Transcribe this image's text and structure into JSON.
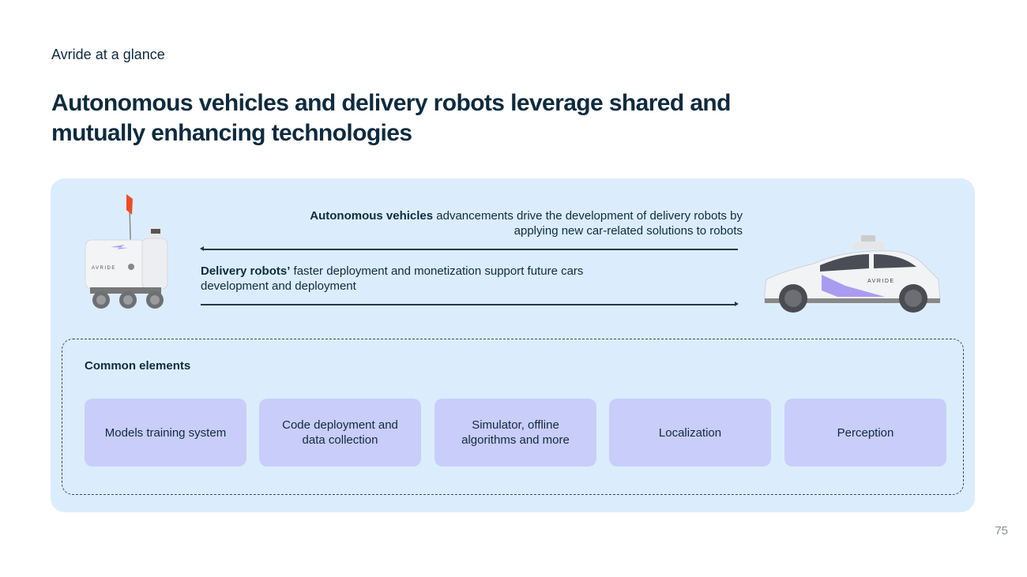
{
  "header": {
    "kicker": "Avride at a glance",
    "title": "Autonomous vehicles and delivery robots leverage shared and mutually enhancing technologies"
  },
  "relationship": {
    "av_bold": "Autonomous vehicles",
    "av_rest": " advancements drive the development of delivery robots by applying new car-related solutions to robots",
    "dr_bold": "Delivery robots’",
    "dr_rest": " faster deployment and monetization support future cars development and deployment"
  },
  "images": {
    "robot_logo": "AVRIDE",
    "car_logo": "AVRIDE"
  },
  "common": {
    "label": "Common elements",
    "items": [
      {
        "label": "Models training system"
      },
      {
        "label": "Code deployment and data collection"
      },
      {
        "label": "Simulator, offline algorithms and more"
      },
      {
        "label": "Localization"
      },
      {
        "label": "Perception"
      }
    ]
  },
  "page_number": "75",
  "colors": {
    "panel": "#dbedfc",
    "card": "#c9cdfa",
    "text": "#0e2b3e",
    "accent_flag": "#f04a23",
    "accent_purple": "#a99cf0"
  }
}
